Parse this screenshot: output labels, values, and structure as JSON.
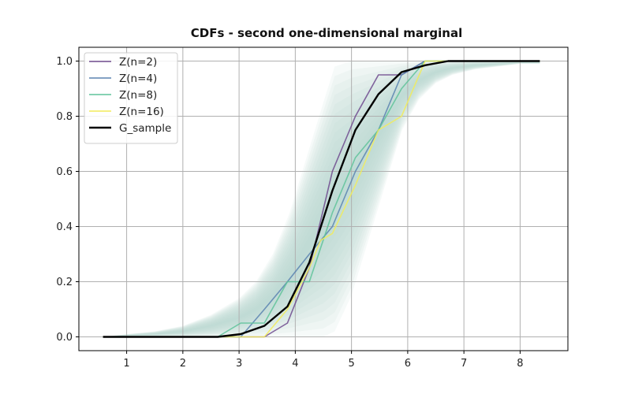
{
  "chart_data": {
    "type": "line",
    "title": "CDFs - second one-dimensional marginal",
    "xlabel": "",
    "ylabel": "",
    "xlim": [
      0.15,
      8.85
    ],
    "ylim": [
      -0.05,
      1.05
    ],
    "xticks": [
      1,
      2,
      3,
      4,
      5,
      6,
      7,
      8
    ],
    "yticks": [
      0.0,
      0.2,
      0.4,
      0.6,
      0.8,
      1.0
    ],
    "ytick_labels": [
      "0.0",
      "0.2",
      "0.4",
      "0.6",
      "0.8",
      "1.0"
    ],
    "grid": true,
    "legend_position": "upper-left",
    "band": {
      "color": "#b7d6d4",
      "x": [
        0.58,
        1.0,
        1.5,
        2.0,
        2.5,
        3.0,
        3.3,
        3.6,
        3.9,
        4.2,
        4.5,
        4.7,
        5.0,
        5.3,
        5.6,
        5.9,
        6.2,
        6.5,
        6.8,
        7.2,
        7.6,
        8.0,
        8.35
      ],
      "lower": [
        0.0,
        0.0,
        0.0,
        0.0,
        0.0,
        0.0,
        0.0,
        0.0,
        0.0,
        0.0,
        0.0,
        0.02,
        0.15,
        0.35,
        0.55,
        0.75,
        0.86,
        0.92,
        0.95,
        0.97,
        0.98,
        0.99,
        0.99
      ],
      "upper": [
        0.0,
        0.01,
        0.02,
        0.04,
        0.08,
        0.14,
        0.2,
        0.3,
        0.45,
        0.65,
        0.85,
        0.98,
        1.0,
        1.0,
        1.0,
        1.0,
        1.0,
        1.0,
        1.0,
        1.0,
        1.0,
        1.0,
        1.0
      ]
    },
    "series": [
      {
        "name": "Z(n=2)",
        "color": "#6f4a8e",
        "width": 1.6,
        "x": [
          0.58,
          3.03,
          3.45,
          3.86,
          4.25,
          4.66,
          5.07,
          5.48,
          5.89,
          6.31,
          6.72,
          8.35
        ],
        "y": [
          0.0,
          0.0,
          0.0,
          0.05,
          0.25,
          0.6,
          0.8,
          0.95,
          0.95,
          1.0,
          1.0,
          1.0
        ]
      },
      {
        "name": "Z(n=4)",
        "color": "#5b84b0",
        "width": 1.6,
        "x": [
          0.58,
          3.03,
          3.45,
          3.86,
          4.25,
          4.66,
          5.07,
          5.48,
          5.89,
          6.31,
          6.72,
          8.35
        ],
        "y": [
          0.0,
          0.0,
          0.1,
          0.2,
          0.3,
          0.4,
          0.6,
          0.75,
          0.95,
          1.0,
          1.0,
          1.0
        ]
      },
      {
        "name": "Z(n=8)",
        "color": "#5fc39a",
        "width": 1.6,
        "x": [
          0.58,
          2.62,
          3.03,
          3.45,
          3.86,
          4.25,
          4.66,
          5.07,
          5.48,
          5.89,
          6.31,
          6.72,
          8.35
        ],
        "y": [
          0.0,
          0.0,
          0.05,
          0.05,
          0.2,
          0.2,
          0.45,
          0.65,
          0.75,
          0.9,
          1.0,
          1.0,
          1.0
        ]
      },
      {
        "name": "Z(n=16)",
        "color": "#f2ec5a",
        "width": 1.6,
        "x": [
          0.58,
          2.62,
          3.03,
          3.45,
          3.86,
          4.25,
          4.45,
          4.66,
          5.07,
          5.48,
          5.89,
          6.31,
          6.72,
          8.35
        ],
        "y": [
          0.0,
          0.0,
          0.0,
          0.0,
          0.1,
          0.25,
          0.35,
          0.375,
          0.55,
          0.75,
          0.8,
          1.0,
          1.0,
          1.0
        ]
      },
      {
        "name": "G_sample",
        "color": "#000000",
        "width": 2.4,
        "x": [
          0.58,
          2.62,
          3.03,
          3.45,
          3.86,
          4.25,
          4.66,
          5.07,
          5.48,
          5.89,
          6.31,
          6.72,
          8.35
        ],
        "y": [
          0.0,
          0.0,
          0.01,
          0.04,
          0.11,
          0.27,
          0.53,
          0.75,
          0.88,
          0.96,
          0.985,
          1.0,
          1.0
        ]
      }
    ]
  }
}
